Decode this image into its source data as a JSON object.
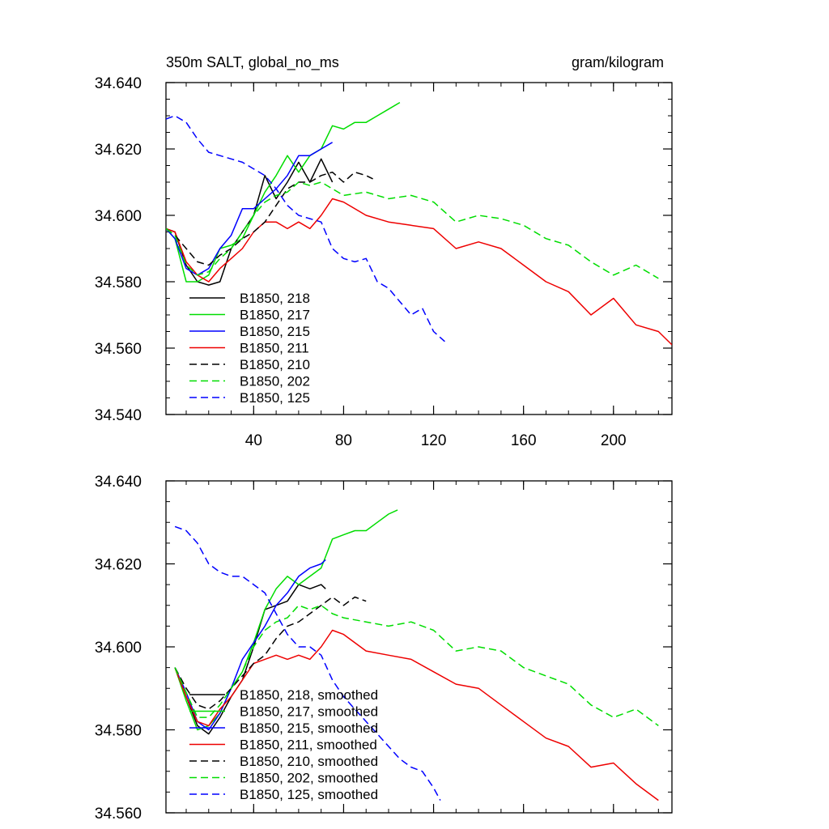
{
  "chart_data": [
    {
      "type": "line",
      "title": "350m SALT, global_no_ms",
      "units": "gram/kilogram",
      "xlabel": "",
      "ylabel": "",
      "xlim": [
        1,
        226
      ],
      "ylim": [
        34.54,
        34.64
      ],
      "xticks": [
        40,
        80,
        120,
        160,
        200
      ],
      "xtick_labels": [
        "40",
        "80",
        "120",
        "160",
        "200"
      ],
      "yticks": [
        34.54,
        34.56,
        34.58,
        34.6,
        34.62,
        34.64
      ],
      "ytick_labels": [
        "34.540",
        "34.560",
        "34.580",
        "34.600",
        "34.620",
        "34.640"
      ],
      "legend_position": "bottom-left",
      "grid": false,
      "series": [
        {
          "name": "B1850, 218",
          "color": "#000000",
          "dash": "solid",
          "x": [
            1,
            5,
            10,
            15,
            20,
            25,
            30,
            35,
            40,
            45,
            50,
            55,
            60,
            65,
            70,
            75
          ],
          "y": [
            34.596,
            34.595,
            34.585,
            34.58,
            34.579,
            34.58,
            34.59,
            34.595,
            34.6,
            34.612,
            34.605,
            34.61,
            34.616,
            34.61,
            34.617,
            34.61
          ]
        },
        {
          "name": "B1850, 217",
          "color": "#00dd00",
          "dash": "solid",
          "x": [
            1,
            5,
            10,
            15,
            20,
            25,
            30,
            35,
            40,
            45,
            50,
            55,
            60,
            65,
            70,
            75,
            80,
            85,
            90,
            95,
            100,
            105
          ],
          "y": [
            34.596,
            34.593,
            34.58,
            34.58,
            34.582,
            34.59,
            34.591,
            34.593,
            34.6,
            34.607,
            34.612,
            34.618,
            34.613,
            34.618,
            34.62,
            34.627,
            34.626,
            34.628,
            34.628,
            34.63,
            34.632,
            34.634
          ]
        },
        {
          "name": "B1850, 215",
          "color": "#0000ff",
          "dash": "solid",
          "x": [
            1,
            5,
            10,
            15,
            20,
            25,
            30,
            35,
            40,
            45,
            50,
            55,
            60,
            65,
            70,
            75
          ],
          "y": [
            34.596,
            34.593,
            34.584,
            34.582,
            34.584,
            34.59,
            34.594,
            34.602,
            34.602,
            34.605,
            34.608,
            34.612,
            34.618,
            34.618,
            34.62,
            34.622
          ]
        },
        {
          "name": "B1850, 211",
          "color": "#ee0000",
          "dash": "solid",
          "x": [
            1,
            5,
            10,
            15,
            20,
            25,
            30,
            35,
            40,
            45,
            50,
            55,
            60,
            65,
            70,
            75,
            80,
            90,
            100,
            110,
            120,
            130,
            140,
            150,
            160,
            170,
            180,
            190,
            200,
            210,
            220,
            226
          ],
          "y": [
            34.596,
            34.595,
            34.586,
            34.582,
            34.58,
            34.584,
            34.587,
            34.59,
            34.595,
            34.598,
            34.598,
            34.596,
            34.598,
            34.596,
            34.6,
            34.605,
            34.604,
            34.6,
            34.598,
            34.597,
            34.596,
            34.59,
            34.592,
            34.59,
            34.585,
            34.58,
            34.577,
            34.57,
            34.575,
            34.567,
            34.565,
            34.561
          ]
        },
        {
          "name": "B1850, 210",
          "color": "#000000",
          "dash": "dash",
          "x": [
            1,
            5,
            10,
            15,
            20,
            25,
            30,
            35,
            40,
            45,
            50,
            55,
            60,
            65,
            70,
            75,
            80,
            85,
            90,
            93
          ],
          "y": [
            34.596,
            34.594,
            34.59,
            34.586,
            34.585,
            34.588,
            34.59,
            34.593,
            34.595,
            34.598,
            34.603,
            34.608,
            34.61,
            34.61,
            34.612,
            34.613,
            34.61,
            34.613,
            34.612,
            34.611
          ]
        },
        {
          "name": "B1850, 202",
          "color": "#00dd00",
          "dash": "dash",
          "x": [
            1,
            5,
            10,
            15,
            20,
            25,
            30,
            35,
            40,
            45,
            50,
            55,
            60,
            65,
            70,
            75,
            80,
            90,
            100,
            110,
            120,
            130,
            140,
            150,
            160,
            170,
            180,
            190,
            200,
            210,
            220
          ],
          "y": [
            34.596,
            34.594,
            34.585,
            34.582,
            34.583,
            34.587,
            34.59,
            34.595,
            34.6,
            34.604,
            34.606,
            34.607,
            34.61,
            34.609,
            34.61,
            34.608,
            34.606,
            34.607,
            34.605,
            34.606,
            34.604,
            34.598,
            34.6,
            34.599,
            34.597,
            34.593,
            34.591,
            34.586,
            34.582,
            34.585,
            34.581
          ]
        },
        {
          "name": "B1850, 125",
          "color": "#0000ff",
          "dash": "dash",
          "x": [
            1,
            5,
            10,
            15,
            20,
            25,
            30,
            35,
            40,
            45,
            50,
            55,
            60,
            65,
            70,
            75,
            80,
            85,
            90,
            95,
            100,
            105,
            110,
            115,
            120,
            125
          ],
          "y": [
            34.629,
            34.63,
            34.628,
            34.623,
            34.619,
            34.618,
            34.617,
            34.616,
            34.614,
            34.612,
            34.608,
            34.603,
            34.6,
            34.599,
            34.598,
            34.59,
            34.587,
            34.586,
            34.587,
            34.58,
            34.578,
            34.574,
            34.57,
            34.572,
            34.565,
            34.562
          ]
        }
      ]
    },
    {
      "type": "line",
      "title": "",
      "xlabel": "",
      "ylabel": "",
      "xlim": [
        1,
        226
      ],
      "ylim": [
        34.56,
        34.64
      ],
      "xticks": [
        40,
        80,
        120,
        160,
        200
      ],
      "xtick_labels": [],
      "yticks": [
        34.56,
        34.58,
        34.6,
        34.62,
        34.64
      ],
      "ytick_labels": [
        "34.560",
        "34.580",
        "34.600",
        "34.620",
        "34.640"
      ],
      "legend_position": "bottom-left",
      "grid": false,
      "series": [
        {
          "name": "B1850, 218, smoothed",
          "color": "#000000",
          "dash": "solid",
          "x": [
            5,
            10,
            15,
            20,
            25,
            30,
            35,
            40,
            45,
            50,
            55,
            60,
            65,
            70,
            72
          ],
          "y": [
            34.595,
            34.588,
            34.581,
            34.579,
            34.583,
            34.588,
            34.592,
            34.6,
            34.609,
            34.61,
            34.611,
            34.615,
            34.614,
            34.615,
            34.614
          ]
        },
        {
          "name": "B1850, 217, smoothed",
          "color": "#00dd00",
          "dash": "solid",
          "x": [
            5,
            10,
            15,
            20,
            25,
            30,
            35,
            40,
            45,
            50,
            55,
            60,
            65,
            70,
            75,
            80,
            85,
            90,
            95,
            100,
            104
          ],
          "y": [
            34.595,
            34.587,
            34.58,
            34.581,
            34.584,
            34.59,
            34.594,
            34.601,
            34.609,
            34.614,
            34.617,
            34.615,
            34.617,
            34.619,
            34.626,
            34.627,
            34.628,
            34.628,
            34.63,
            34.632,
            34.633
          ]
        },
        {
          "name": "B1850, 215, smoothed",
          "color": "#0000ff",
          "dash": "solid",
          "x": [
            5,
            10,
            15,
            20,
            25,
            30,
            35,
            40,
            45,
            50,
            55,
            60,
            65,
            70,
            72
          ],
          "y": [
            34.595,
            34.589,
            34.582,
            34.58,
            34.584,
            34.59,
            34.597,
            34.601,
            34.605,
            34.61,
            34.613,
            34.617,
            34.619,
            34.62,
            34.621
          ]
        },
        {
          "name": "B1850, 211, smoothed",
          "color": "#ee0000",
          "dash": "solid",
          "x": [
            5,
            10,
            15,
            20,
            25,
            30,
            35,
            40,
            45,
            50,
            55,
            60,
            65,
            70,
            75,
            80,
            90,
            100,
            110,
            120,
            130,
            140,
            150,
            160,
            170,
            180,
            190,
            200,
            210,
            220
          ],
          "y": [
            34.595,
            34.588,
            34.582,
            34.581,
            34.585,
            34.588,
            34.592,
            34.596,
            34.597,
            34.598,
            34.597,
            34.598,
            34.597,
            34.6,
            34.604,
            34.603,
            34.599,
            34.598,
            34.597,
            34.594,
            34.591,
            34.59,
            34.586,
            34.582,
            34.578,
            34.576,
            34.571,
            34.572,
            34.567,
            34.563
          ]
        },
        {
          "name": "B1850, 210, smoothed",
          "color": "#000000",
          "dash": "dash",
          "x": [
            5,
            10,
            15,
            20,
            25,
            30,
            35,
            40,
            45,
            50,
            55,
            60,
            65,
            70,
            75,
            80,
            85,
            90
          ],
          "y": [
            34.595,
            34.59,
            34.586,
            34.585,
            34.587,
            34.59,
            34.593,
            34.596,
            34.598,
            34.602,
            34.605,
            34.606,
            34.608,
            34.61,
            34.612,
            34.61,
            34.612,
            34.611
          ]
        },
        {
          "name": "B1850, 202, smoothed",
          "color": "#00dd00",
          "dash": "dash",
          "x": [
            5,
            10,
            15,
            20,
            25,
            30,
            35,
            40,
            45,
            50,
            55,
            60,
            65,
            70,
            75,
            80,
            90,
            100,
            110,
            120,
            130,
            140,
            150,
            160,
            170,
            180,
            190,
            200,
            210,
            220
          ],
          "y": [
            34.595,
            34.589,
            34.583,
            34.583,
            34.586,
            34.59,
            34.594,
            34.6,
            34.604,
            34.606,
            34.607,
            34.61,
            34.609,
            34.61,
            34.608,
            34.607,
            34.606,
            34.605,
            34.606,
            34.604,
            34.599,
            34.6,
            34.599,
            34.595,
            34.593,
            34.591,
            34.586,
            34.583,
            34.585,
            34.581
          ]
        },
        {
          "name": "B1850, 125, smoothed",
          "color": "#0000ff",
          "dash": "dash",
          "x": [
            5,
            10,
            15,
            20,
            25,
            30,
            35,
            40,
            45,
            50,
            55,
            60,
            65,
            70,
            75,
            80,
            85,
            90,
            95,
            100,
            105,
            110,
            115,
            120,
            123
          ],
          "y": [
            34.629,
            34.628,
            34.625,
            34.62,
            34.618,
            34.617,
            34.617,
            34.615,
            34.613,
            34.608,
            34.603,
            34.6,
            34.6,
            34.598,
            34.592,
            34.588,
            34.585,
            34.582,
            34.579,
            34.576,
            34.573,
            34.571,
            34.57,
            34.566,
            34.563
          ]
        }
      ]
    }
  ]
}
